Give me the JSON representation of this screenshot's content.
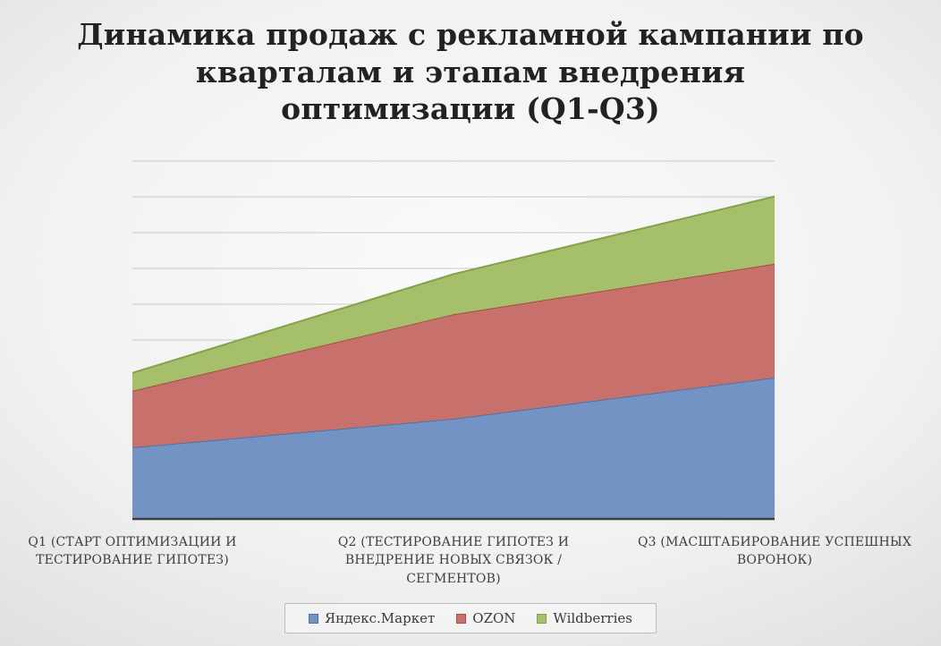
{
  "chart_data": {
    "type": "area",
    "stacked": true,
    "title": "Динамика продаж с рекламной кампании по кварталам и этапам внедрения оптимизации (Q1-Q3)",
    "categories": [
      "Q1 (СТАРТ ОПТИМИЗАЦИИ И ТЕСТИРОВАНИЕ ГИПОТЕЗ)",
      "Q2 (ТЕСТИРОВАНИЕ ГИПОТЕЗ И ВНЕДРЕНИЕ НОВЫХ СВЯЗОК / СЕГМЕНТОВ)",
      "Q3 (МАСШТАБИРОВАНИЕ УСПЕШНЫХ ВОРОНОК)"
    ],
    "series": [
      {
        "name": "Яндекс.Маркет",
        "values": [
          200,
          280,
          395
        ],
        "fill": "#7293C3",
        "stroke": "#4F74A3"
      },
      {
        "name": "OZON",
        "values": [
          158,
          292,
          318
        ],
        "fill": "#C8706B",
        "stroke": "#A94C47"
      },
      {
        "name": "Wildberries",
        "values": [
          50,
          112,
          188
        ],
        "fill": "#A5BF6B",
        "stroke": "#85A248"
      }
    ],
    "ylim": [
      0,
      1000
    ],
    "gridline_count": 10,
    "y_axis_labels_visible": false,
    "x_axis_line_color": "#3f3f3f",
    "gridline_color": "#c8c8c8",
    "legend_position": "bottom",
    "background": "radial gray gradient slide"
  }
}
